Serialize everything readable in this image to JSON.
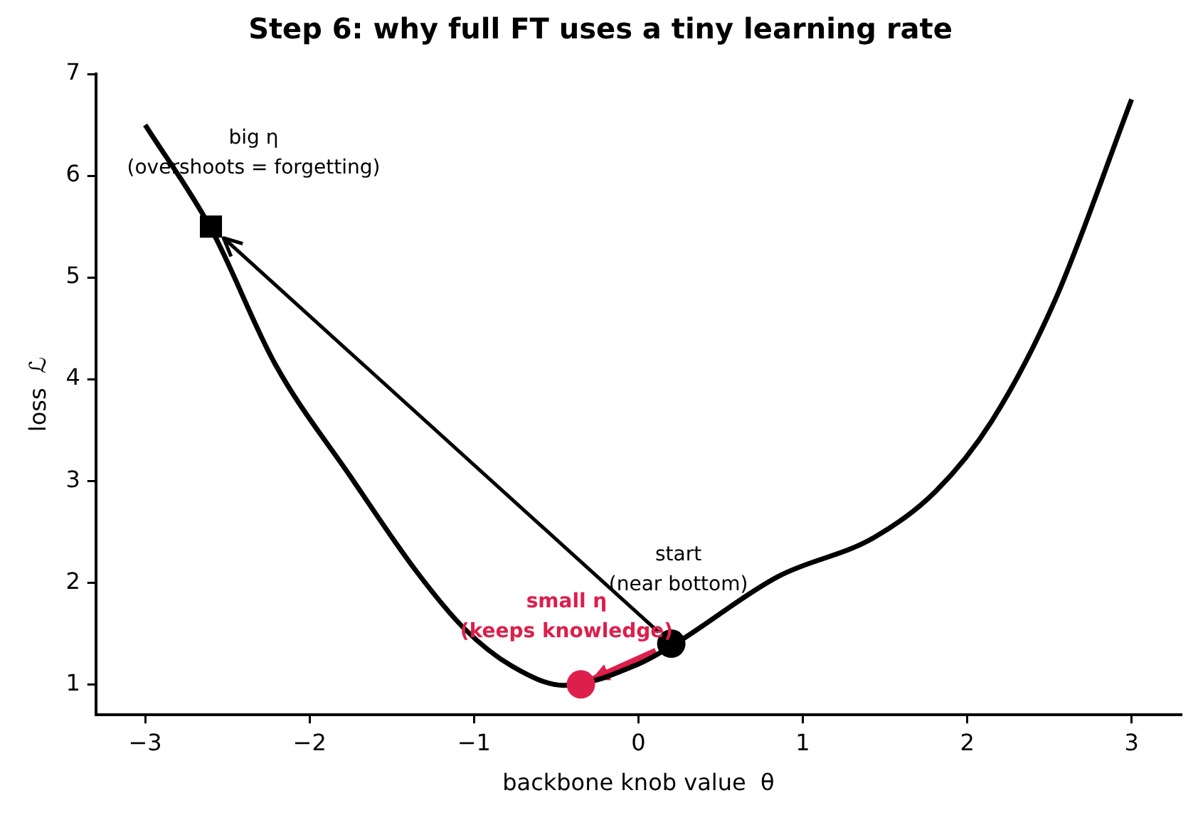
{
  "chart_data": {
    "type": "line",
    "title": "Step 6: why full FT uses a tiny learning rate",
    "xlabel": "backbone knob value  θ",
    "ylabel": "loss  ℒ",
    "xlim": [
      -3.3,
      3.3
    ],
    "xticks": [
      {
        "value": -3,
        "label": "−3"
      },
      {
        "value": -2,
        "label": "−2"
      },
      {
        "value": -1,
        "label": "−1"
      },
      0,
      1,
      2,
      3
    ],
    "ylim": [
      0.7,
      7
    ],
    "yticks": [
      1,
      2,
      3,
      4,
      5,
      6,
      7
    ],
    "grid": false,
    "legend": false,
    "series": [
      {
        "color": "#000000",
        "marker": "none",
        "line_style": "solid",
        "x": [
          -3.0,
          -2.6,
          -2.21,
          -1.75,
          -1.35,
          -1.06,
          -0.77,
          -0.45,
          0.0,
          0.215,
          0.85,
          1.43,
          1.81,
          2.15,
          2.53,
          3.0
        ],
        "values": [
          6.5,
          5.48,
          4.15,
          3.04,
          2.11,
          1.55,
          1.18,
          0.99,
          1.2,
          1.39,
          2.06,
          2.44,
          2.9,
          3.59,
          4.76,
          6.75
        ]
      },
      {
        "type": "scatter",
        "color": "#000000",
        "marker": "circle",
        "x": [
          0.2
        ],
        "values": [
          1.4
        ]
      },
      {
        "type": "scatter",
        "color": "#dc1f4b",
        "marker": "circle",
        "x": [
          -0.35
        ],
        "values": [
          1.0
        ]
      },
      {
        "type": "scatter",
        "color": "#000000",
        "marker": "square",
        "x": [
          -2.6
        ],
        "values": [
          5.5
        ]
      }
    ],
    "annotations": [
      {
        "text": "start\n(near bottom)",
        "x": 0.2,
        "y": 1.4
      },
      {
        "text": "small η\n(keeps knowledge)",
        "x": -0.35,
        "y": 1.0
      },
      {
        "text": "big η\n(overshoots = forgetting)",
        "x": -2.6,
        "y": 5.5
      }
    ]
  }
}
